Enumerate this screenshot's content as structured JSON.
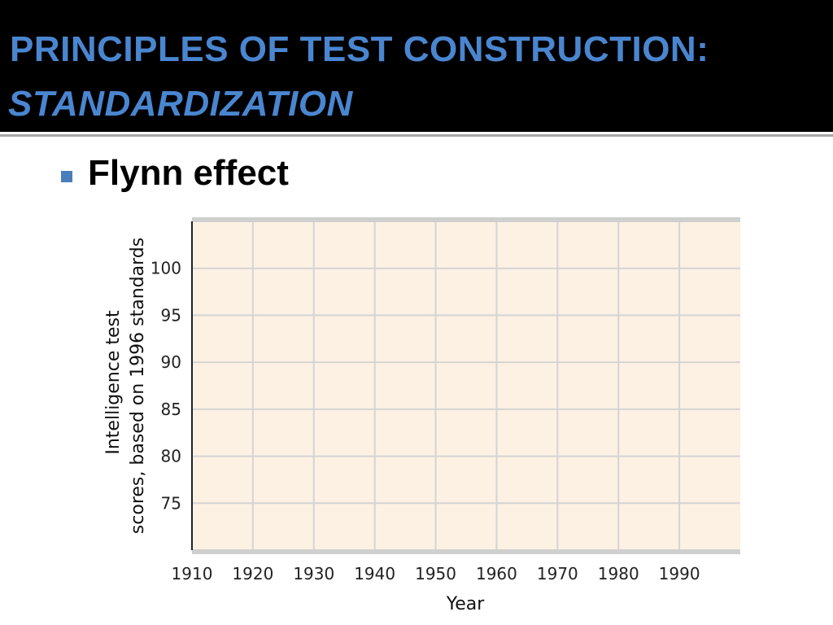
{
  "slide": {
    "title_line1": "PRINCIPLES OF TEST CONSTRUCTION:",
    "title_line2": "STANDARDIZATION",
    "bullet": "Flynn effect"
  },
  "colors": {
    "title_bar_bg": "#000000",
    "title_text": "#4a86d0",
    "bullet_marker": "#4a7ebb",
    "plot_background": "#fdf1e3",
    "gridline": "#d4d4d4"
  },
  "chart_data": {
    "type": "line",
    "title": "",
    "xlabel": "Year",
    "ylabel_lines": [
      "Intelligence test",
      "scores, based on 1996 standards"
    ],
    "x_ticks": [
      1910,
      1920,
      1930,
      1940,
      1950,
      1960,
      1970,
      1980,
      1990
    ],
    "y_ticks": [
      75,
      80,
      85,
      90,
      95,
      100
    ],
    "xlim": [
      1910,
      2000
    ],
    "ylim": [
      70,
      105
    ],
    "grid": true,
    "series": []
  }
}
